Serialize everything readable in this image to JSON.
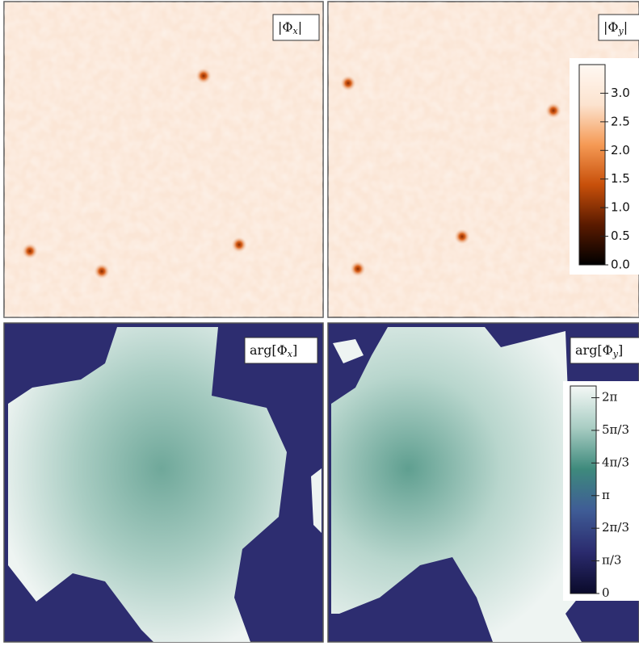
{
  "chart_data": [
    {
      "type": "heatmap",
      "panels": [
        {
          "label": {
            "prefix": "|Φ",
            "subscript": "x",
            "suffix": "|"
          }
        },
        {
          "label": {
            "prefix": "|Φ",
            "subscript": "y",
            "suffix": "|"
          }
        }
      ],
      "colors": [
        "#000000",
        "#5a1a00",
        "#c8500a",
        "#f59a55",
        "#fce3cf",
        "#fff8f2"
      ],
      "ylim": [
        0,
        3.5
      ],
      "yticks": [
        {
          "value": 0,
          "label": "0.0"
        },
        {
          "value": 0.5,
          "label": "0.5"
        },
        {
          "value": 1,
          "label": "1.0"
        },
        {
          "value": 1.5,
          "label": "1.5"
        },
        {
          "value": 2,
          "label": "2.0"
        },
        {
          "value": 2.5,
          "label": "2.5"
        },
        {
          "value": 3,
          "label": "3.0"
        }
      ]
    },
    {
      "type": "heatmap",
      "panels": [
        {
          "label": {
            "prefix": "arg[Φ",
            "subscript": "x",
            "suffix": "]"
          }
        },
        {
          "label": {
            "prefix": "arg[Φ",
            "subscript": "y",
            "suffix": "]"
          }
        }
      ],
      "colors": [
        "#0a0a2a",
        "#2b2b6e",
        "#3f5c96",
        "#3e8a7c",
        "#a9cdc3",
        "#f4f8f6"
      ],
      "ylim": [
        0,
        6.66
      ],
      "yticks": [
        {
          "value": 0,
          "label": "0"
        },
        {
          "value": 1.0472,
          "label": "π/3"
        },
        {
          "value": 2.0944,
          "label": "2π/3"
        },
        {
          "value": 3.1416,
          "label": "π"
        },
        {
          "value": 4.1888,
          "label": "4π/3"
        },
        {
          "value": 5.236,
          "label": "5π/3"
        },
        {
          "value": 6.2832,
          "label": "2π"
        }
      ]
    }
  ]
}
